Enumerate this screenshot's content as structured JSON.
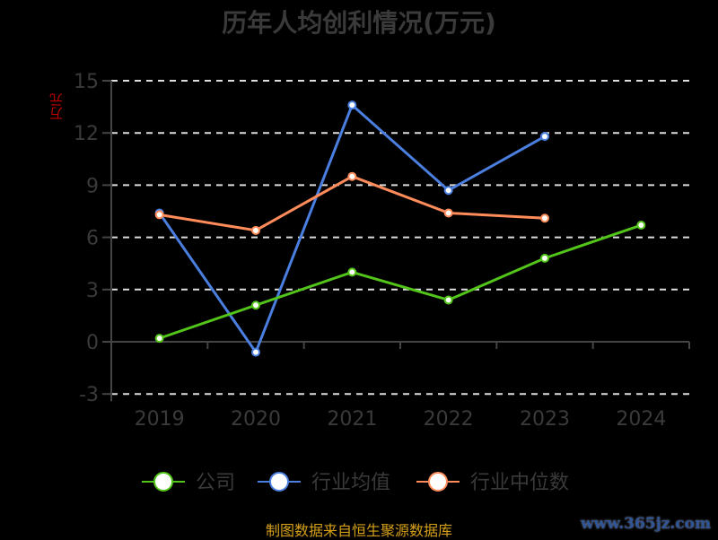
{
  "chart_data": {
    "type": "line",
    "title": "历年人均创利情况(万元)",
    "ylabel": "万元",
    "categories": [
      "2019",
      "2020",
      "2021",
      "2022",
      "2023",
      "2024"
    ],
    "ylim": [
      -3,
      15
    ],
    "yticks": [
      -3,
      0,
      3,
      6,
      9,
      12,
      15
    ],
    "grid": true,
    "legend_position": "bottom",
    "series": [
      {
        "name": "公司",
        "color": "#52c41a",
        "values": [
          0.2,
          2.1,
          4.0,
          2.4,
          4.8,
          6.7
        ]
      },
      {
        "name": "行业均值",
        "color": "#4a7fe0",
        "values": [
          7.4,
          -0.6,
          13.6,
          8.7,
          11.8,
          null
        ]
      },
      {
        "name": "行业中位数",
        "color": "#ff8c5a",
        "values": [
          7.3,
          6.4,
          9.5,
          7.4,
          7.1,
          null
        ]
      }
    ]
  },
  "footer": {
    "source": "制图数据来自恒生聚源数据库",
    "watermark": "www.365jz.com"
  }
}
